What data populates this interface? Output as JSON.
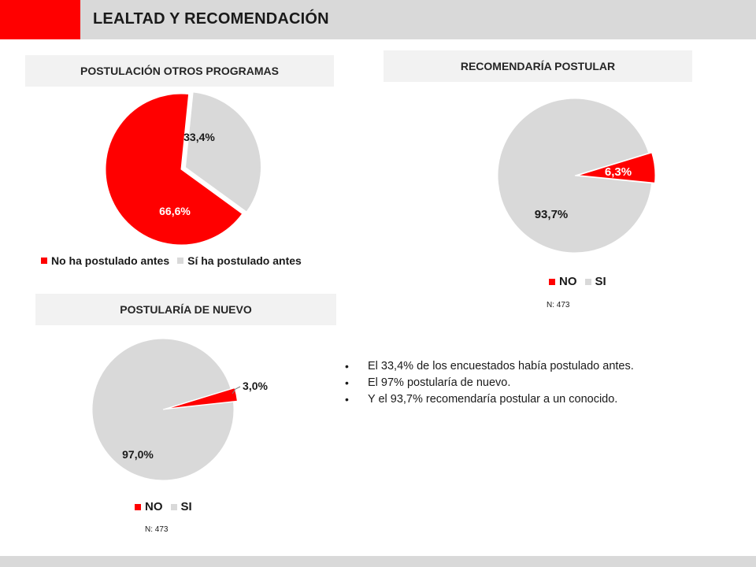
{
  "header": {
    "title": "LEALTAD Y RECOMENDACIÓN"
  },
  "colors": {
    "accent": "#ff0000",
    "gray": "#d9d9d9",
    "title_bg": "#f2f2f2"
  },
  "chart_data": [
    {
      "type": "pie",
      "title": "POSTULACIÓN OTROS PROGRAMAS",
      "categories": [
        "No ha postulado antes",
        "Sí ha postulado antes"
      ],
      "values": [
        66.6,
        33.4
      ],
      "labels": [
        "66,6%",
        "33,4%"
      ],
      "colors": [
        "#ff0000",
        "#d9d9d9"
      ],
      "legend": "bottom",
      "n_label": ""
    },
    {
      "type": "pie",
      "title": "RECOMENDARÍA POSTULAR",
      "categories": [
        "NO",
        "SI"
      ],
      "values": [
        6.3,
        93.7
      ],
      "labels": [
        "6,3%",
        "93,7%"
      ],
      "colors": [
        "#ff0000",
        "#d9d9d9"
      ],
      "legend": "bottom",
      "n_label": "N: 473"
    },
    {
      "type": "pie",
      "title": "POSTULARÍA DE NUEVO",
      "categories": [
        "NO",
        "SI"
      ],
      "values": [
        3.0,
        97.0
      ],
      "labels": [
        "3,0%",
        "97,0%"
      ],
      "colors": [
        "#ff0000",
        "#d9d9d9"
      ],
      "legend": "bottom",
      "n_label": "N: 473"
    }
  ],
  "bullets": [
    "El 33,4% de los encuestados había postulado antes.",
    "El 97% postularía de nuevo.",
    "Y el 93,7% recomendaría postular a un conocido."
  ]
}
